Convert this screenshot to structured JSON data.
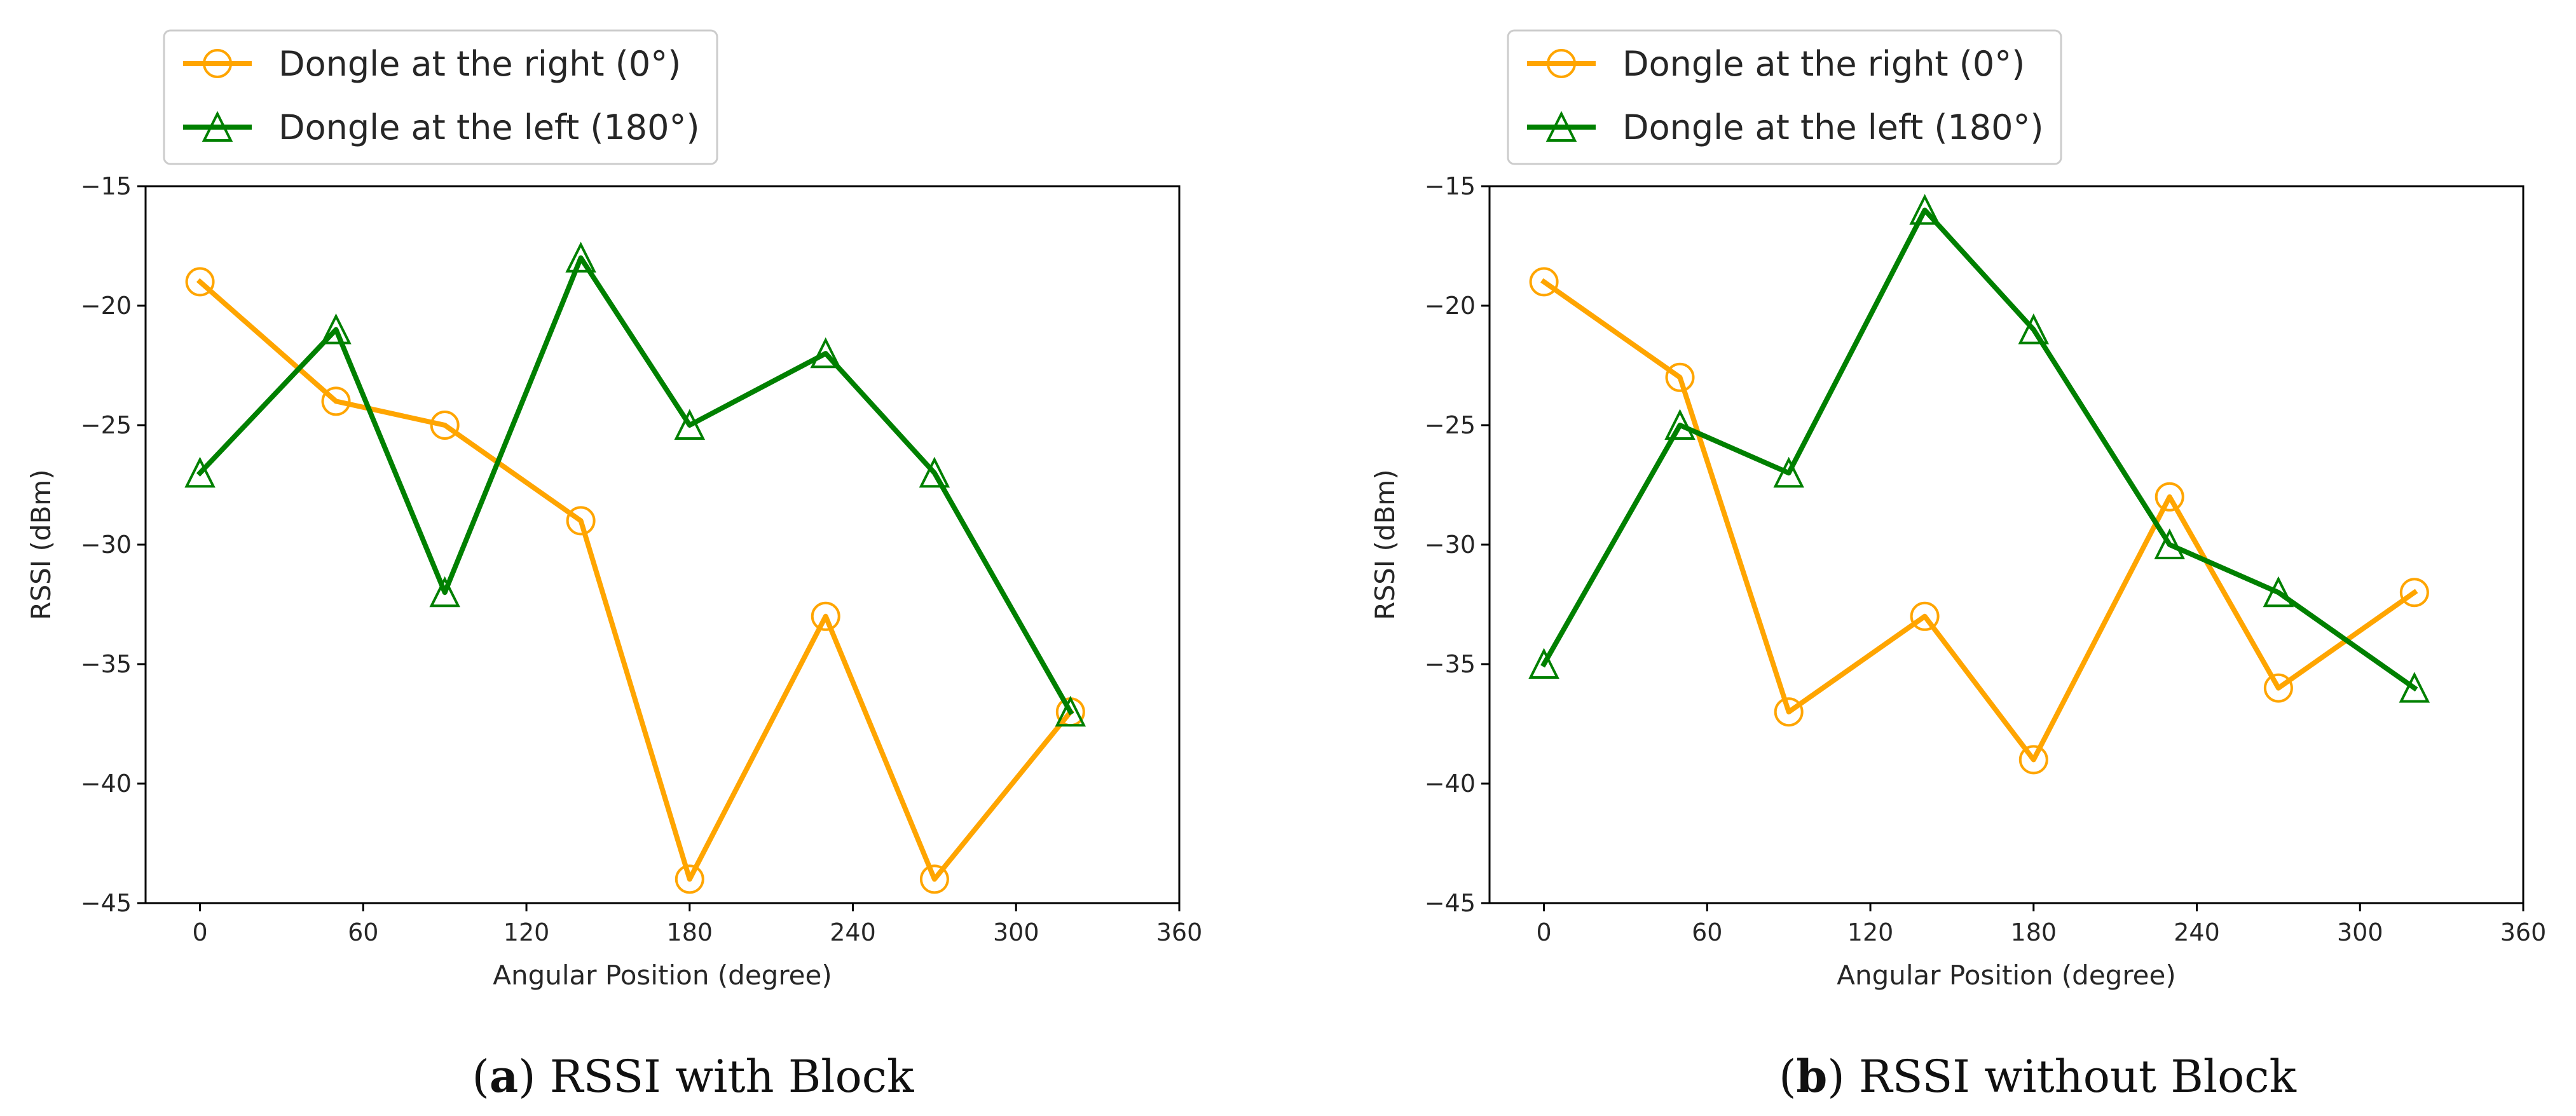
{
  "figure": {
    "colors": {
      "series0": "#ffa500",
      "series1": "#008000",
      "axis": "#000000",
      "text": "#262626"
    }
  },
  "chart_data": [
    {
      "type": "line",
      "caption": {
        "open": "(",
        "letter": "a",
        "close": ")",
        "text": " RSSI with Block"
      },
      "xlabel": "Angular Position (degree)",
      "ylabel": "RSSI (dBm)",
      "xlim": [
        -20,
        360
      ],
      "ylim": [
        -45,
        -15
      ],
      "xticks": [
        0,
        60,
        120,
        180,
        240,
        300,
        360
      ],
      "yticks": [
        -15,
        -20,
        -25,
        -30,
        -35,
        -40,
        -45
      ],
      "grid": false,
      "legend_placement": "top-left-outside",
      "series": [
        {
          "name": "Dongle at the right (0°)",
          "marker": "circle",
          "color": "#ffa500",
          "x": [
            0,
            50,
            90,
            140,
            180,
            230,
            270,
            320
          ],
          "y": [
            -19,
            -24,
            -25,
            -29,
            -44,
            -33,
            -44,
            -37
          ]
        },
        {
          "name": "Dongle at the left (180°)",
          "marker": "triangle",
          "color": "#008000",
          "x": [
            0,
            50,
            90,
            140,
            180,
            230,
            270,
            320
          ],
          "y": [
            -27,
            -21,
            -32,
            -18,
            -25,
            -22,
            -27,
            -37
          ]
        }
      ]
    },
    {
      "type": "line",
      "caption": {
        "open": "(",
        "letter": "b",
        "close": ")",
        "text": " RSSI without Block"
      },
      "xlabel": "Angular Position (degree)",
      "ylabel": "RSSI (dBm)",
      "xlim": [
        -20,
        360
      ],
      "ylim": [
        -45,
        -15
      ],
      "xticks": [
        0,
        60,
        120,
        180,
        240,
        300,
        360
      ],
      "yticks": [
        -15,
        -20,
        -25,
        -30,
        -35,
        -40,
        -45
      ],
      "grid": false,
      "legend_placement": "top-left-outside",
      "series": [
        {
          "name": "Dongle at the right (0°)",
          "marker": "circle",
          "color": "#ffa500",
          "x": [
            0,
            50,
            90,
            140,
            180,
            230,
            270,
            320
          ],
          "y": [
            -19,
            -23,
            -37,
            -33,
            -39,
            -28,
            -36,
            -32
          ]
        },
        {
          "name": "Dongle at the left (180°)",
          "marker": "triangle",
          "color": "#008000",
          "x": [
            0,
            50,
            90,
            140,
            180,
            230,
            270,
            320
          ],
          "y": [
            -35,
            -25,
            -27,
            -16,
            -21,
            -30,
            -32,
            -36
          ]
        }
      ]
    }
  ]
}
